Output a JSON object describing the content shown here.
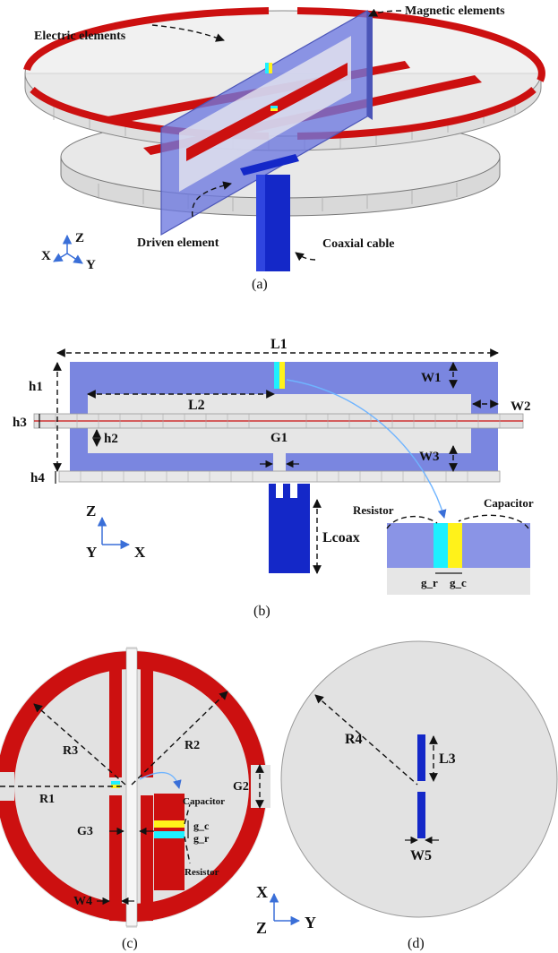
{
  "colors": {
    "electric": "#cc1010",
    "magnetic": "#7a86e0",
    "substrate": "#e6e6e6",
    "coax": "#1428c8",
    "resistor": "#1ef0ff",
    "capacitor": "#fff21a"
  },
  "panel_a": {
    "caption": "(a)",
    "labels": {
      "electric_elements": "Electric elements",
      "magnetic_elements": "Magnetic elements",
      "driven_element": "Driven element",
      "coaxial_cable": "Coaxial cable"
    },
    "axes": {
      "z": "Z",
      "x": "X",
      "y": "Y"
    }
  },
  "panel_b": {
    "caption": "(b)",
    "dims": {
      "L1": "L1",
      "L2": "L2",
      "W1": "W1",
      "W2": "W2",
      "W3": "W3",
      "h1": "h1",
      "h2": "h2",
      "h3": "h3",
      "h4": "h4",
      "G1": "G1",
      "Lcoax": "Lcoax"
    },
    "axes": {
      "z": "Z",
      "y": "Y",
      "x": "X"
    },
    "inset": {
      "resistor": "Resistor",
      "capacitor": "Capacitor",
      "g_r": "g_r",
      "g_c": "g_c"
    }
  },
  "panel_c": {
    "caption": "(c)",
    "dims": {
      "R1": "R1",
      "R2": "R2",
      "R3": "R3",
      "G2": "G2",
      "G3": "G3",
      "W4": "W4"
    },
    "inset": {
      "capacitor": "Capacitor",
      "resistor": "Resistor",
      "g_c": "g_c",
      "g_r": "g_r"
    }
  },
  "panel_d": {
    "caption": "(d)",
    "dims": {
      "R4": "R4",
      "L3": "L3",
      "W5": "W5"
    },
    "axes": {
      "x": "X",
      "z": "Z",
      "y": "Y"
    }
  }
}
